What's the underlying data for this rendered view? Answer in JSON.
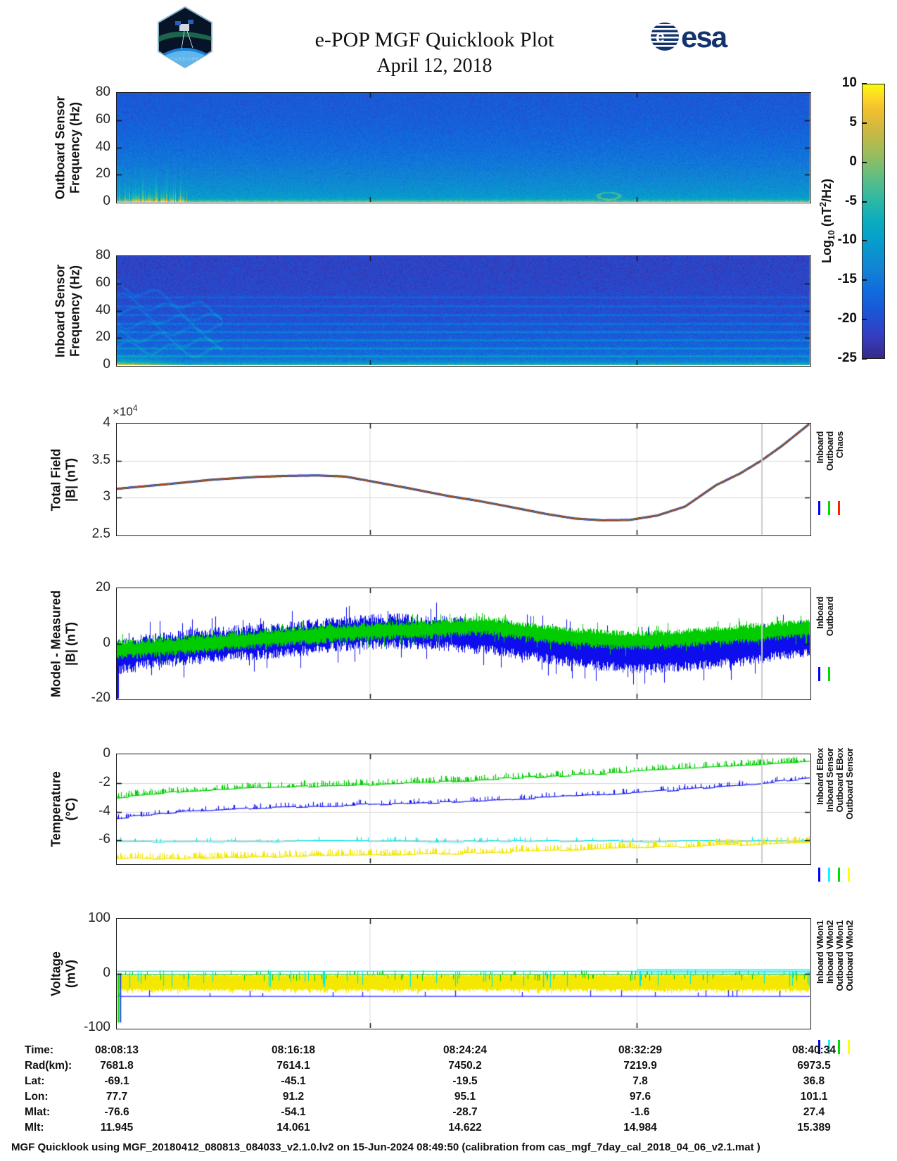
{
  "header": {
    "title": "e-POP MGF Quicklook Plot",
    "date": "April 12, 2018",
    "cassiope_label": "CASSIOPE",
    "esa_label": "esa"
  },
  "colorbar": {
    "ticks": [
      10,
      5,
      0,
      -5,
      -10,
      -15,
      -20,
      -25
    ],
    "label_prefix": "Log",
    "label_sub": "10",
    "label_mid": " (nT",
    "label_sup": "2",
    "label_suffix": "/Hz)",
    "clim": [
      -25,
      10
    ]
  },
  "chart_data": [
    {
      "id": "p1",
      "type": "heatmap",
      "kind": "outboard-spectrogram",
      "ylabel": [
        "Outboard Sensor",
        "Frequency (Hz)"
      ],
      "ylim": [
        0,
        80
      ],
      "yticks": [
        0,
        20,
        40,
        60,
        80
      ],
      "clim": [
        -25,
        10
      ],
      "description": "Broadband blue/teal background near -17 dB, yellow band 0-3 Hz across full width, yellow vertical bursts up to ~20 Hz near start of pass, small yellow ring near 72% of pass"
    },
    {
      "id": "p2",
      "type": "heatmap",
      "kind": "inboard-spectrogram",
      "ylabel": [
        "Inboard Sensor",
        "Frequency (Hz)"
      ],
      "ylim": [
        0,
        80
      ],
      "yticks": [
        0,
        20,
        40,
        60,
        80
      ],
      "clim": [
        -25,
        10
      ],
      "description": "Darker blue background near -21 dB, horizontal interference lines at ~7,13,19,25,31,37,44,50 Hz, wavy descending tones and yellow burst at start of pass, bright teal band below 6 Hz, yellow line at 0-1.5 Hz"
    },
    {
      "id": "p3",
      "type": "line",
      "ylabel": [
        "Total Field",
        "|B| (nT)"
      ],
      "exponent_prefix": "×10",
      "exponent_sup": "4",
      "ylim": [
        2.5,
        4
      ],
      "yticks": [
        2.5,
        3,
        3.5,
        4
      ],
      "legend": [
        {
          "label": "Inboard",
          "color": "#0000ff"
        },
        {
          "label": "Outboard",
          "color": "#00dd00"
        },
        {
          "label": "Chaos",
          "color": "#ff2200"
        }
      ],
      "series_overlap_note": "Inboard, Outboard and Chaos model curves overlap within line width",
      "points": [
        [
          0,
          3.12
        ],
        [
          0.07,
          3.18
        ],
        [
          0.14,
          3.245
        ],
        [
          0.2,
          3.28
        ],
        [
          0.25,
          3.295
        ],
        [
          0.29,
          3.3
        ],
        [
          0.33,
          3.285
        ],
        [
          0.365,
          3.225
        ],
        [
          0.42,
          3.13
        ],
        [
          0.48,
          3.02
        ],
        [
          0.52,
          2.96
        ],
        [
          0.56,
          2.89
        ],
        [
          0.62,
          2.78
        ],
        [
          0.66,
          2.72
        ],
        [
          0.7,
          2.695
        ],
        [
          0.74,
          2.7
        ],
        [
          0.78,
          2.76
        ],
        [
          0.82,
          2.88
        ],
        [
          0.865,
          3.17
        ],
        [
          0.9,
          3.33
        ],
        [
          0.93,
          3.5
        ],
        [
          0.96,
          3.7
        ],
        [
          0.98,
          3.85
        ],
        [
          1,
          4.0
        ]
      ]
    },
    {
      "id": "p4",
      "type": "noisy-band",
      "ylabel": [
        "Model - Measured",
        "|B| (nT)"
      ],
      "ylim": [
        -20,
        20
      ],
      "yticks": [
        -20,
        0,
        20
      ],
      "legend": [
        {
          "label": "Inboard",
          "color": "#0000ff"
        },
        {
          "label": "Outboard",
          "color": "#00dd00"
        }
      ],
      "series": [
        {
          "name": "Inboard",
          "color": "#0d0dee",
          "amp": 6.5,
          "centers": [
            [
              0,
              -5
            ],
            [
              0.04,
              -3
            ],
            [
              0.08,
              -2
            ],
            [
              0.12,
              -1
            ],
            [
              0.16,
              0
            ],
            [
              0.2,
              0.5
            ],
            [
              0.25,
              1.5
            ],
            [
              0.3,
              3
            ],
            [
              0.35,
              4
            ],
            [
              0.4,
              4.5
            ],
            [
              0.45,
              4
            ],
            [
              0.5,
              3
            ],
            [
              0.55,
              2
            ],
            [
              0.6,
              0
            ],
            [
              0.65,
              -2
            ],
            [
              0.7,
              -3.5
            ],
            [
              0.75,
              -4.5
            ],
            [
              0.8,
              -4
            ],
            [
              0.85,
              -3
            ],
            [
              0.9,
              -2
            ],
            [
              0.95,
              0
            ],
            [
              1,
              1.5
            ]
          ]
        },
        {
          "name": "Outboard",
          "color": "#00cc00",
          "amp": 3.6,
          "centers": [
            [
              0,
              -2.5
            ],
            [
              0.05,
              -1.5
            ],
            [
              0.1,
              -0.5
            ],
            [
              0.15,
              0.5
            ],
            [
              0.2,
              1.5
            ],
            [
              0.25,
              2.5
            ],
            [
              0.3,
              3.5
            ],
            [
              0.35,
              4.2
            ],
            [
              0.4,
              4.8
            ],
            [
              0.45,
              5
            ],
            [
              0.5,
              6
            ],
            [
              0.53,
              6.5
            ],
            [
              0.56,
              5.5
            ],
            [
              0.6,
              4
            ],
            [
              0.65,
              2.5
            ],
            [
              0.7,
              1.5
            ],
            [
              0.75,
              1
            ],
            [
              0.8,
              1.5
            ],
            [
              0.85,
              2.5
            ],
            [
              0.9,
              3.5
            ],
            [
              0.95,
              4.5
            ],
            [
              1,
              5.5
            ]
          ]
        }
      ]
    },
    {
      "id": "p5",
      "type": "multi-line",
      "ylabel": [
        "Temperature",
        "(°C)"
      ],
      "ylim": [
        -7.6,
        0
      ],
      "yticks": [
        0,
        -2,
        -4,
        -6
      ],
      "legend": [
        {
          "label": "Inboard EBox",
          "color": "#0000ff"
        },
        {
          "label": "Inboard Sensor",
          "color": "#00ffff"
        },
        {
          "label": "Outboard EBox",
          "color": "#00dd00"
        },
        {
          "label": "Outboard Sensor",
          "color": "#ffff00"
        }
      ],
      "series": [
        {
          "name": "Inboard EBox",
          "color": "#1515ee",
          "spike": 0.35,
          "spike_p": 0.25,
          "points": [
            [
              0,
              -4.45
            ],
            [
              0.1,
              -4.0
            ],
            [
              0.2,
              -3.75
            ],
            [
              0.3,
              -3.6
            ],
            [
              0.4,
              -3.45
            ],
            [
              0.5,
              -3.3
            ],
            [
              0.6,
              -3.05
            ],
            [
              0.7,
              -2.8
            ],
            [
              0.8,
              -2.5
            ],
            [
              0.9,
              -2.15
            ],
            [
              1,
              -1.7
            ]
          ]
        },
        {
          "name": "Inboard Sensor",
          "color": "#00e5e5",
          "spike": 0.3,
          "spike_p": 0.12,
          "points": [
            [
              0,
              -6.08
            ],
            [
              1,
              -6.05
            ]
          ]
        },
        {
          "name": "Outboard EBox",
          "color": "#00cc00",
          "spike": 0.4,
          "spike_p": 0.45,
          "points": [
            [
              0,
              -3.0
            ],
            [
              0.1,
              -2.55
            ],
            [
              0.2,
              -2.35
            ],
            [
              0.3,
              -2.2
            ],
            [
              0.4,
              -2.05
            ],
            [
              0.5,
              -1.85
            ],
            [
              0.6,
              -1.6
            ],
            [
              0.7,
              -1.35
            ],
            [
              0.8,
              -1.05
            ],
            [
              0.9,
              -0.75
            ],
            [
              1,
              -0.45
            ]
          ]
        },
        {
          "name": "Outboard Sensor",
          "color": "#f2e500",
          "spike": 0.45,
          "spike_p": 0.55,
          "points": [
            [
              0,
              -7.3
            ],
            [
              0.2,
              -7.15
            ],
            [
              0.4,
              -7.0
            ],
            [
              0.5,
              -6.9
            ],
            [
              0.6,
              -6.75
            ],
            [
              0.7,
              -6.6
            ],
            [
              0.8,
              -6.45
            ],
            [
              0.9,
              -6.3
            ],
            [
              1,
              -6.15
            ]
          ]
        }
      ]
    },
    {
      "id": "p6",
      "type": "voltage",
      "ylabel": [
        "Voltage",
        "(mV)"
      ],
      "ylim": [
        -100,
        100
      ],
      "yticks": [
        -100,
        0,
        100
      ],
      "legend": [
        {
          "label": "Inboard VMon1",
          "color": "#0000ff"
        },
        {
          "label": "Inboard VMon2",
          "color": "#00ffff"
        },
        {
          "label": "Outboard VMon1",
          "color": "#00dd00"
        },
        {
          "label": "Outboard VMon2",
          "color": "#ffff00"
        }
      ],
      "levels": {
        "inboard_vmon1": -42,
        "inboard_vmon2": 4,
        "outboard_vmon1": -2,
        "outboard_vmon2_band": [
          -30,
          -5
        ],
        "startup_transient": [
          -90,
          0
        ]
      }
    }
  ],
  "x_axis": {
    "start_time": "08:08:13",
    "end_time": "08:40:34"
  },
  "table": {
    "rows": [
      {
        "label": "Time:",
        "values": [
          "08:08:13",
          "08:16:18",
          "08:24:24",
          "08:32:29",
          "08:40:34"
        ]
      },
      {
        "label": "Rad(km):",
        "values": [
          "7681.8",
          "7614.1",
          "7450.2",
          "7219.9",
          "6973.5"
        ]
      },
      {
        "label": "Lat:",
        "values": [
          "-69.1",
          "-45.1",
          "-19.5",
          "7.8",
          "36.8"
        ]
      },
      {
        "label": "Lon:",
        "values": [
          "77.7",
          "91.2",
          "95.1",
          "97.6",
          "101.1"
        ]
      },
      {
        "label": "Mlat:",
        "values": [
          "-76.6",
          "-54.1",
          "-28.7",
          "-1.6",
          "27.4"
        ]
      },
      {
        "label": "Mlt:",
        "values": [
          "11.945",
          "14.061",
          "14.622",
          "14.984",
          "15.389"
        ]
      }
    ]
  },
  "caption": "MGF Quicklook using MGF_20180412_080813_084033_v2.1.0.lv2 on 15-Jun-2024 08:49:50 (calibration from cas_mgf_7day_cal_2018_04_06_v2.1.mat )"
}
